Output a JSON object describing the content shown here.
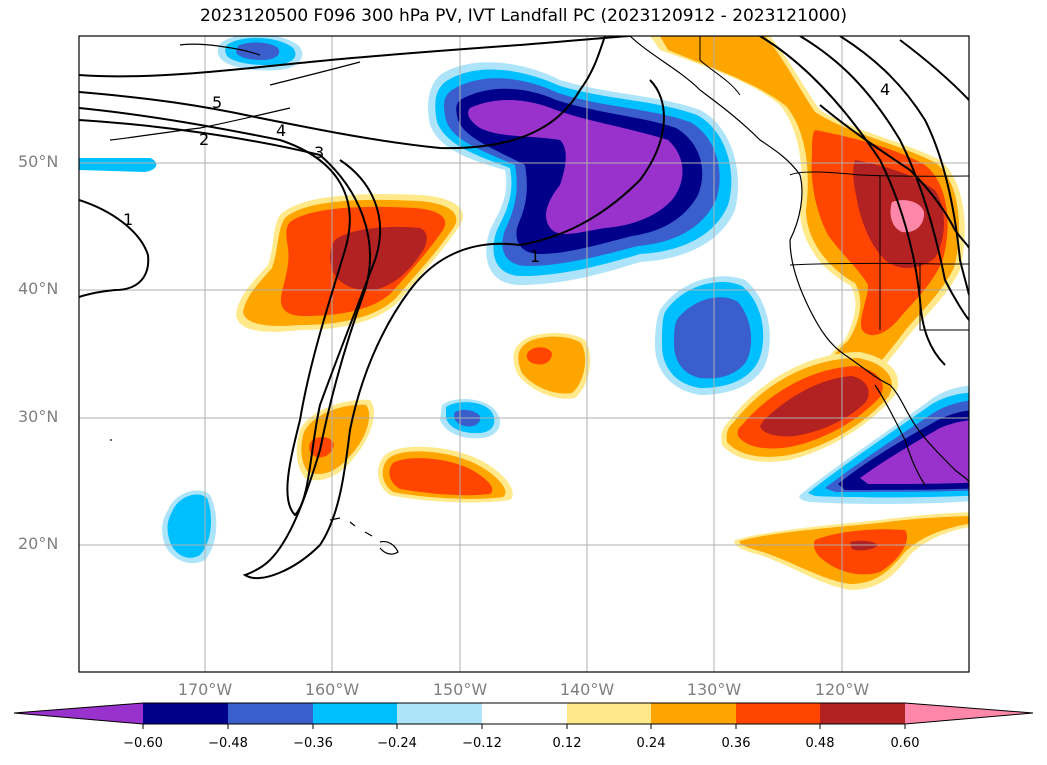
{
  "title": "2023120500 F096 300 hPa PV, IVT Landfall PC (2023120912 - 2023121000)",
  "lat_labels": [
    "50°N",
    "40°N",
    "30°N",
    "20°N"
  ],
  "lon_labels": [
    "170°W",
    "160°W",
    "150°W",
    "140°W",
    "130°W",
    "120°W"
  ],
  "contour_labels": [
    "5",
    "4",
    "2",
    "3",
    "1",
    "1",
    "4"
  ],
  "colorbar": {
    "tick_labels": [
      "−0.60",
      "−0.48",
      "−0.36",
      "−0.24",
      "−0.12",
      "0.12",
      "0.24",
      "0.36",
      "0.48",
      "0.60"
    ],
    "colors": [
      "#9932cc",
      "#00008b",
      "#3a5fcd",
      "#00bfff",
      "#ade4fa",
      "#ffffff",
      "#ffe98a",
      "#ffa500",
      "#ff4500",
      "#b22222",
      "#ff88aa"
    ]
  }
}
